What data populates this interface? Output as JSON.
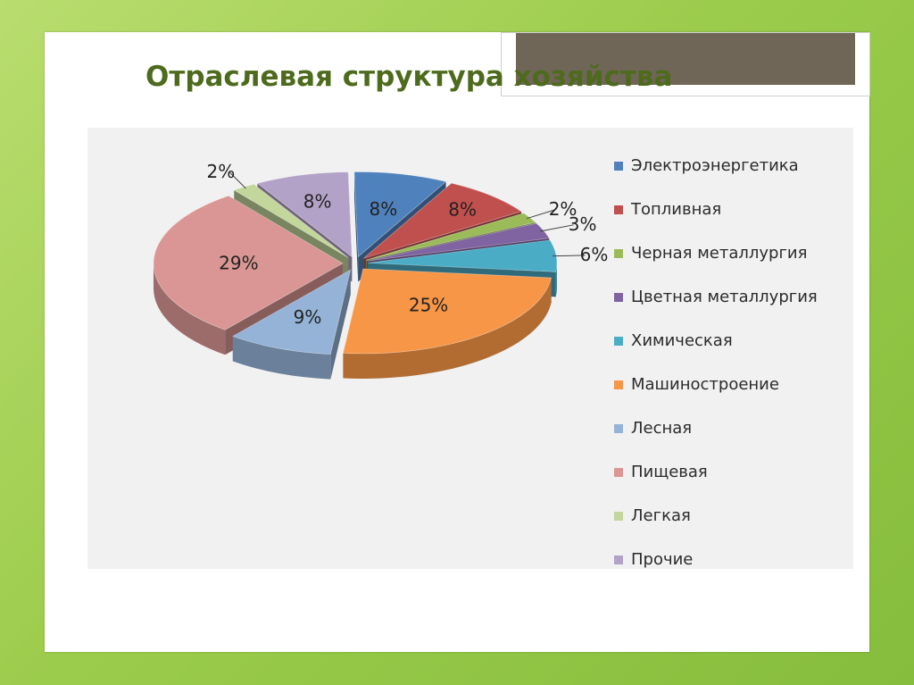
{
  "slide": {
    "title": "Отраслевая структура хозяйства"
  },
  "chart_data": {
    "type": "pie",
    "title": "Отраслевая структура хозяйства",
    "unit": "%",
    "legend_position": "right",
    "slices": [
      {
        "label": "Электроэнергетика",
        "value": 8,
        "display": "8%",
        "color": "#4f81bd"
      },
      {
        "label": "Топливная",
        "value": 8,
        "display": "8%",
        "color": "#c0504d"
      },
      {
        "label": "Черная металлургия",
        "value": 2,
        "display": "2%",
        "color": "#9bbb59"
      },
      {
        "label": "Цветная металлургия",
        "value": 3,
        "display": "3%",
        "color": "#8064a2"
      },
      {
        "label": "Химическая",
        "value": 6,
        "display": "6%",
        "color": "#4bacc6"
      },
      {
        "label": "Машиностроение",
        "value": 25,
        "display": "25%",
        "color": "#f79646"
      },
      {
        "label": "Лесная",
        "value": 9,
        "display": "9%",
        "color": "#95b3d7"
      },
      {
        "label": "Пищевая",
        "value": 29,
        "display": "29%",
        "color": "#d99694"
      },
      {
        "label": "Легкая",
        "value": 2,
        "display": "2%",
        "color": "#c3d69b"
      },
      {
        "label": "Прочие",
        "value": 8,
        "display": "8%",
        "color": "#b3a2c7"
      }
    ]
  }
}
